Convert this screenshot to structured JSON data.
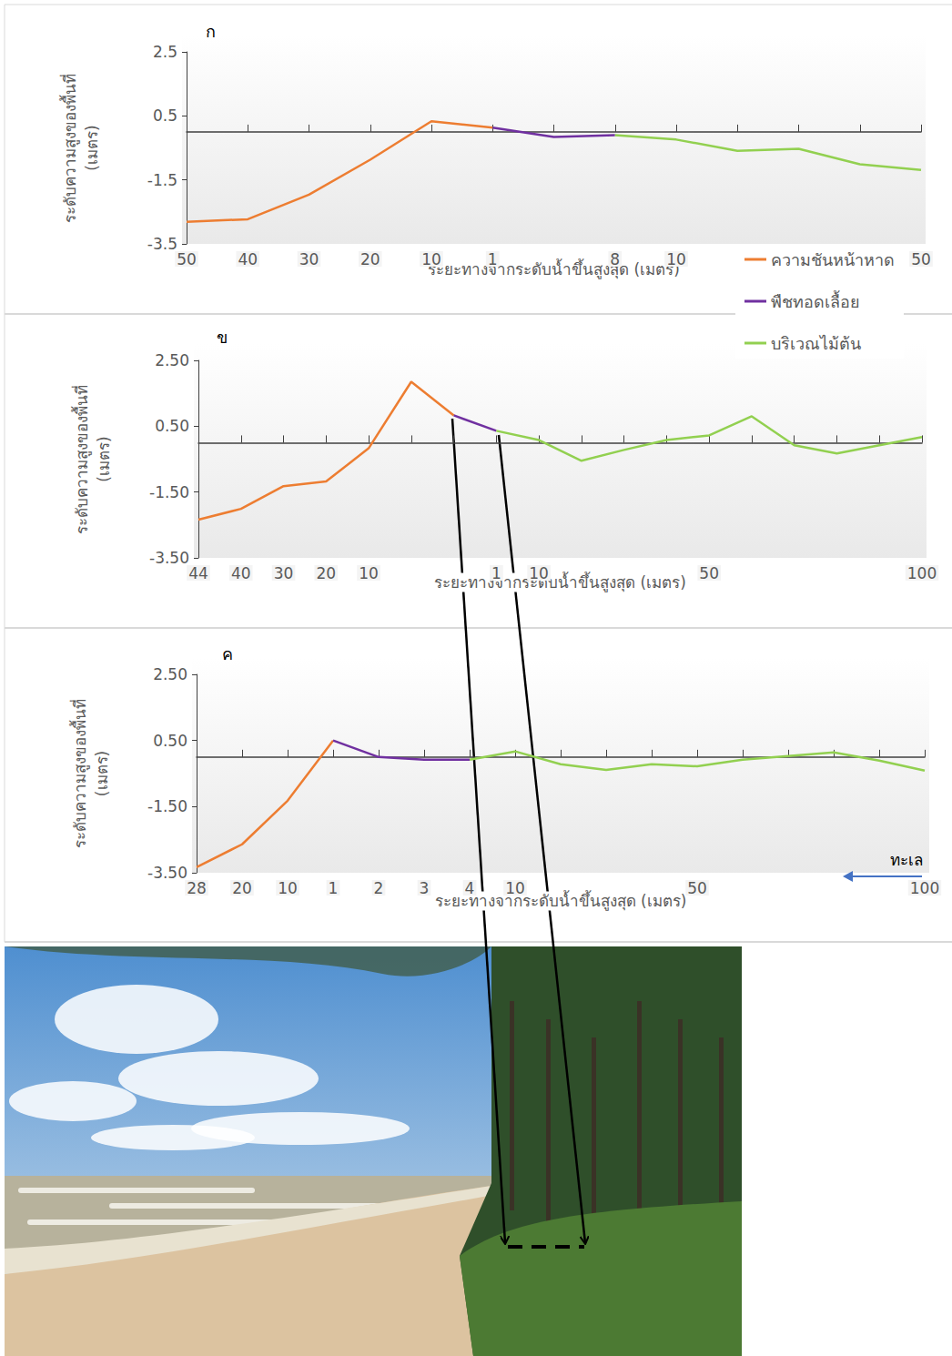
{
  "chart_data": [
    {
      "type": "line",
      "title": "ก",
      "x_label": "ระยะทางจากระดับน้ำขึ้นสูงสุด (เมตร)",
      "y_label": "ระดับความสูงของพื้นที่\n(เมตร)",
      "categories": [
        50,
        40,
        30,
        20,
        10,
        1,
        null,
        8,
        10,
        null,
        null,
        null,
        50
      ],
      "series": [
        {
          "name": "ความชันหน้าหาด",
          "color": "#ED7D31",
          "values": [
            -2.81,
            -2.73,
            -1.96,
            -0.87,
            0.33,
            0.13,
            null,
            null,
            null,
            null,
            null,
            null,
            null
          ]
        },
        {
          "name": "พืชทอดเลื้อย",
          "color": "#7030A0",
          "values": [
            null,
            null,
            null,
            null,
            null,
            0.13,
            -0.16,
            -0.1,
            null,
            null,
            null,
            null,
            null
          ]
        },
        {
          "name": "บริเวณไม้ต้น",
          "color": "#92D050",
          "values": [
            null,
            null,
            null,
            null,
            null,
            null,
            null,
            -0.1,
            -0.24,
            -0.59,
            -0.53,
            -1.01,
            -1.19
          ]
        }
      ],
      "ylim": [
        -3.5,
        2.5
      ],
      "yticks": [
        -3.5,
        -1.5,
        0.5,
        2.5
      ],
      "legend": "right"
    },
    {
      "type": "line",
      "title": "ข",
      "x_label": "ระยะทางจากระดับน้ำขึ้นสูงสุด (เมตร)",
      "y_label": "ระดับความสูงของพื้นที่\n(เมตร)",
      "categories": [
        44,
        40,
        30,
        20,
        10,
        null,
        null,
        1,
        10,
        null,
        null,
        null,
        50,
        null,
        null,
        null,
        null,
        100
      ],
      "series": [
        {
          "name": "ความชันหน้าหาด",
          "color": "#ED7D31",
          "values": [
            -2.34,
            -2.01,
            -1.32,
            -1.18,
            -0.17,
            1.85,
            0.83,
            null,
            null,
            null,
            null,
            null,
            null,
            null,
            null,
            null,
            null,
            null
          ]
        },
        {
          "name": "พืชทอดเลื้อย",
          "color": "#7030A0",
          "values": [
            null,
            null,
            null,
            null,
            null,
            null,
            0.83,
            0.36,
            null,
            null,
            null,
            null,
            null,
            null,
            null,
            null,
            null,
            null
          ]
        },
        {
          "name": "บริเวณไม้ต้น",
          "color": "#92D050",
          "values": [
            null,
            null,
            null,
            null,
            null,
            null,
            null,
            0.36,
            0.08,
            -0.55,
            -0.22,
            0.08,
            0.22,
            0.8,
            -0.08,
            -0.33,
            -0.08,
            0.17
          ]
        }
      ],
      "ylim": [
        -3.5,
        2.5
      ],
      "yticks": [
        {
          "value": -3.5,
          "label": "-3.50"
        },
        {
          "value": -1.5,
          "label": "-1.50"
        },
        {
          "value": 0.5,
          "label": "0.50"
        },
        {
          "value": 2.5,
          "label": "2.50"
        }
      ]
    },
    {
      "type": "line",
      "title": "ค",
      "x_label": "ระยะทางจากระดับน้ำขึ้นสูงสุด (เมตร)",
      "y_label": "ระดับความสูงของพื้นที่\n(เมตร)",
      "categories": [
        28,
        20,
        10,
        1,
        2,
        3,
        4,
        10,
        null,
        null,
        null,
        50,
        null,
        null,
        null,
        null,
        100
      ],
      "series": [
        {
          "name": "ความชันหน้าหาด",
          "color": "#ED7D31",
          "values": [
            -3.33,
            -2.64,
            -1.32,
            0.5,
            null,
            null,
            null,
            null,
            null,
            null,
            null,
            null,
            null,
            null,
            null,
            null,
            null
          ]
        },
        {
          "name": "พืชทอดเลื้อย",
          "color": "#7030A0",
          "values": [
            null,
            null,
            null,
            0.5,
            0,
            -0.08,
            -0.08,
            null,
            null,
            null,
            null,
            null,
            null,
            null,
            null,
            null,
            null
          ]
        },
        {
          "name": "บริเวณไม้ต้น",
          "color": "#92D050",
          "values": [
            null,
            null,
            null,
            null,
            null,
            null,
            -0.08,
            0.17,
            -0.22,
            -0.39,
            -0.22,
            -0.28,
            -0.08,
            0.03,
            0.14,
            -0.11,
            -0.41
          ]
        }
      ],
      "ylim": [
        -3.5,
        2.5
      ],
      "yticks": [
        {
          "value": -3.5,
          "label": "-3.50"
        },
        {
          "value": -1.5,
          "label": "-1.50"
        },
        {
          "value": 0.5,
          "label": "0.50"
        },
        {
          "value": 2.5,
          "label": "2.50"
        }
      ],
      "annotations": [
        "ทะเล"
      ]
    }
  ]
}
